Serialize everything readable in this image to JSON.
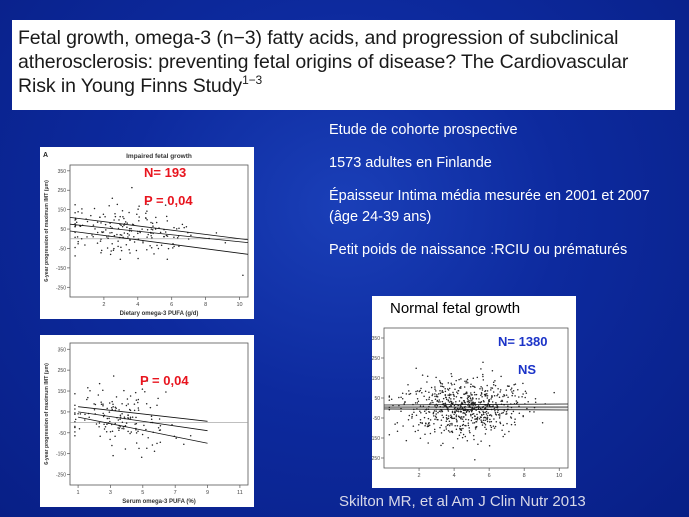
{
  "title": {
    "text": "Fetal growth, omega-3 (n−3) fatty acids, and progression of subclinical atherosclerosis: preventing fetal origins of disease? The Cardiovascular Risk in Young Finns Study",
    "superscript": "1−3"
  },
  "bullets": [
    "Etude de cohorte prospective",
    "1573 adultes en Finlande",
    "Épaisseur Intima média mesurée en 2001 et 2007 (âge 24-39 ans)",
    "Petit poids de naissance :RCIU ou prématurés"
  ],
  "citation": "Skilton MR, et al Am J Clin Nutr 2013",
  "normal_label": "Normal fetal growth",
  "colors": {
    "background": "#0d2a9e",
    "red_text": "#e8141e",
    "blue_text": "#1b33c8"
  },
  "chart_data": [
    {
      "type": "scatter",
      "panel_letter": "A",
      "title": "Impaired fetal growth",
      "xlabel": "Dietary omega-3 PUFA (g/d)",
      "ylabel": "6-year progression of maximum IMT (µm)",
      "xlim": [
        0,
        10.5
      ],
      "ylim": [
        -300,
        380
      ],
      "xticks": [
        2,
        4,
        6,
        8,
        10
      ],
      "yticks": [
        350,
        250,
        150,
        50,
        -50,
        -150,
        -250
      ],
      "annotations": [
        "N= 193",
        "P = 0,04"
      ],
      "reference_line_y": 0,
      "regression": {
        "x": [
          0,
          10.5
        ],
        "y": [
          75,
          -20
        ]
      },
      "ci_upper": {
        "x": [
          0,
          10.5
        ],
        "y": [
          110,
          -5
        ]
      },
      "ci_lower": {
        "x": [
          0,
          10.5
        ],
        "y": [
          40,
          -80
        ]
      },
      "n_points": 193
    },
    {
      "type": "scatter",
      "title": "",
      "xlabel": "Serum omega-3 PUFA (%)",
      "ylabel": "6-year progression of maximum IMT (µm)",
      "xlim": [
        0.5,
        11.5
      ],
      "ylim": [
        -300,
        380
      ],
      "xticks": [
        1,
        3,
        5,
        7,
        9,
        11
      ],
      "yticks": [
        350,
        250,
        150,
        50,
        -50,
        -150,
        -250
      ],
      "annotations": [
        "P = 0,04"
      ],
      "reference_line_y": 0,
      "regression": {
        "x": [
          1,
          9
        ],
        "y": [
          50,
          -40
        ]
      },
      "ci_upper": {
        "x": [
          1,
          9
        ],
        "y": [
          75,
          5
        ]
      },
      "ci_lower": {
        "x": [
          1,
          9
        ],
        "y": [
          25,
          -100
        ]
      },
      "n_points": 160
    },
    {
      "type": "scatter",
      "title": "",
      "xlabel": "",
      "ylabel": "",
      "xlim": [
        0,
        10.5
      ],
      "ylim": [
        -300,
        400
      ],
      "xticks": [
        2,
        4,
        6,
        8,
        10
      ],
      "yticks": [
        350,
        250,
        150,
        50,
        -50,
        -150,
        -250
      ],
      "annotations": [
        "N= 1380",
        "NS"
      ],
      "reference_line_y": 0,
      "regression": {
        "x": [
          0,
          10.5
        ],
        "y": [
          5,
          5
        ]
      },
      "ci_upper": {
        "x": [
          0,
          10.5
        ],
        "y": [
          15,
          20
        ]
      },
      "ci_lower": {
        "x": [
          0,
          10.5
        ],
        "y": [
          -5,
          -10
        ]
      },
      "n_points": 1380
    }
  ]
}
